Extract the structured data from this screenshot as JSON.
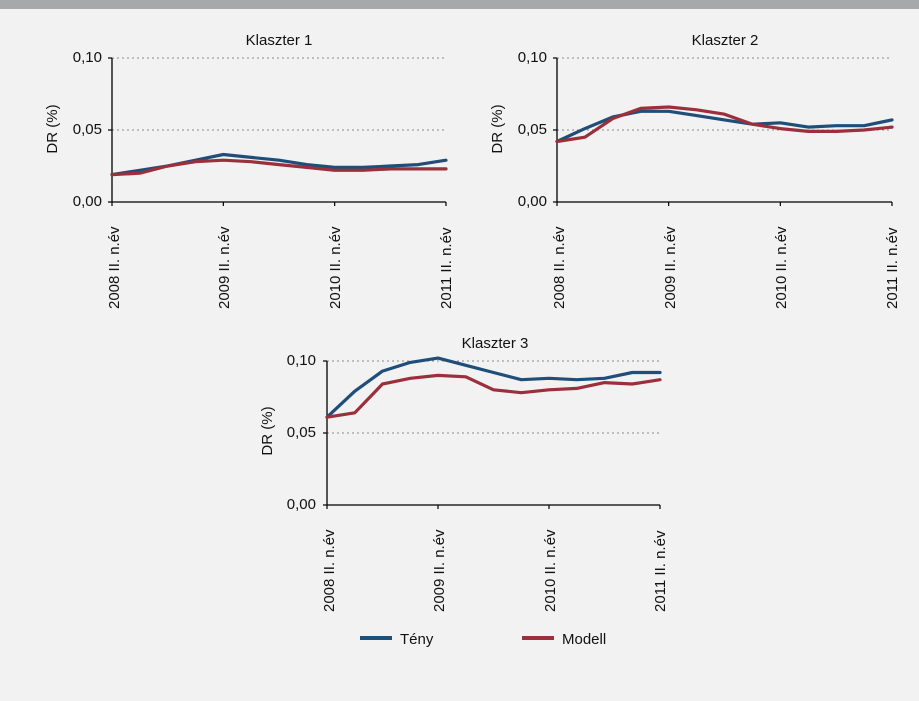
{
  "colors": {
    "background": "#f2f2f3",
    "top_bar": "#a6a8ab",
    "teny": "#1f4e79",
    "modell": "#9b2f3b",
    "grid": "#8a8a8a"
  },
  "legend": {
    "placement": "bottom-center",
    "items": [
      {
        "label": "Tény",
        "color": "#1f4e79"
      },
      {
        "label": "Modell",
        "color": "#9b2f3b"
      }
    ]
  },
  "chart_data": [
    {
      "type": "line",
      "title": "Klaszter 1",
      "xlabel": "",
      "ylabel": "DR (%)",
      "ylim": [
        0,
        0.1
      ],
      "yticks": [
        "0,00",
        "0,05",
        "0,10"
      ],
      "xtick_labels": [
        "2008 II. n.év",
        "2009 II. n.év",
        "2010 II. n.év",
        "2011 II. n.év"
      ],
      "x_positions": 13,
      "grid": "horizontal dotted",
      "series": [
        {
          "name": "Tény",
          "values": [
            0.019,
            0.022,
            0.025,
            0.029,
            0.033,
            0.031,
            0.029,
            0.026,
            0.024,
            0.024,
            0.025,
            0.026,
            0.029
          ]
        },
        {
          "name": "Modell",
          "values": [
            0.019,
            0.02,
            0.025,
            0.028,
            0.029,
            0.028,
            0.026,
            0.024,
            0.022,
            0.022,
            0.023,
            0.023,
            0.023
          ]
        }
      ]
    },
    {
      "type": "line",
      "title": "Klaszter 2",
      "xlabel": "",
      "ylabel": "DR (%)",
      "ylim": [
        0,
        0.1
      ],
      "yticks": [
        "0,00",
        "0,05",
        "0,10"
      ],
      "xtick_labels": [
        "2008 II. n.év",
        "2009 II. n.év",
        "2010 II. n.év",
        "2011 II. n.év"
      ],
      "x_positions": 13,
      "grid": "horizontal dotted",
      "series": [
        {
          "name": "Tény",
          "values": [
            0.042,
            0.051,
            0.059,
            0.063,
            0.063,
            0.06,
            0.057,
            0.054,
            0.055,
            0.052,
            0.053,
            0.053,
            0.057
          ]
        },
        {
          "name": "Modell",
          "values": [
            0.042,
            0.045,
            0.058,
            0.065,
            0.066,
            0.064,
            0.061,
            0.054,
            0.051,
            0.049,
            0.049,
            0.05,
            0.052
          ]
        }
      ]
    },
    {
      "type": "line",
      "title": "Klaszter 3",
      "xlabel": "",
      "ylabel": "DR (%)",
      "ylim": [
        0,
        0.1
      ],
      "yticks": [
        "0,00",
        "0,05",
        "0,10"
      ],
      "xtick_labels": [
        "2008 II. n.év",
        "2009 II. n.év",
        "2010 II. n.év",
        "2011 II. n.év"
      ],
      "x_positions": 13,
      "grid": "horizontal dotted",
      "series": [
        {
          "name": "Tény",
          "values": [
            0.061,
            0.079,
            0.093,
            0.099,
            0.102,
            0.097,
            0.092,
            0.087,
            0.088,
            0.087,
            0.088,
            0.092,
            0.092
          ]
        },
        {
          "name": "Modell",
          "values": [
            0.061,
            0.064,
            0.084,
            0.088,
            0.09,
            0.089,
            0.08,
            0.078,
            0.08,
            0.081,
            0.085,
            0.084,
            0.087
          ]
        }
      ]
    }
  ]
}
